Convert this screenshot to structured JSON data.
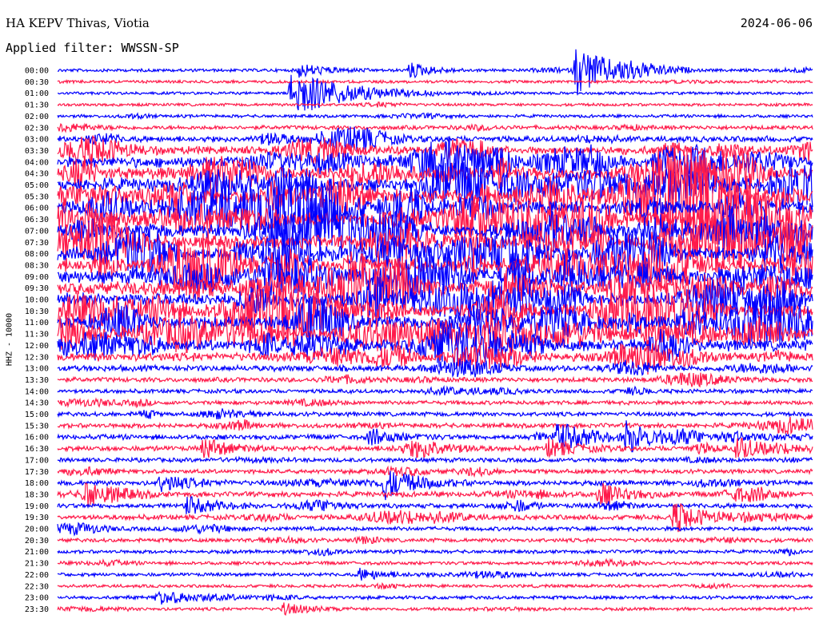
{
  "header": {
    "station": "HA KEPV Thivas, Viotia",
    "date": "2024-06-06",
    "filter": "Applied filter: WWSSN-SP",
    "channel": "HHZ - 10000"
  },
  "chart_data": {
    "type": "line",
    "title": "HA KEPV Thivas, Viotia",
    "subtitle": "Applied filter: WWSSN-SP",
    "ylabel": "HHZ - 10000",
    "date": "2024-06-06",
    "grid": false,
    "series_colors": [
      "#0000ff",
      "#ff1a4a"
    ],
    "trace_labels": [
      "00:00",
      "00:30",
      "01:00",
      "01:30",
      "02:00",
      "02:30",
      "03:00",
      "03:30",
      "04:00",
      "04:30",
      "05:00",
      "05:30",
      "06:00",
      "06:30",
      "07:00",
      "07:30",
      "08:00",
      "08:30",
      "09:00",
      "09:30",
      "10:00",
      "10:30",
      "11:00",
      "11:30",
      "12:00",
      "12:30",
      "13:00",
      "13:30",
      "14:00",
      "14:30",
      "15:00",
      "15:30",
      "16:00",
      "16:30",
      "17:00",
      "17:30",
      "18:00",
      "18:30",
      "19:00",
      "19:30",
      "20:00",
      "20:30",
      "21:00",
      "21:30",
      "22:00",
      "22:30",
      "23:00",
      "23:30"
    ],
    "trace_activity": [
      0.12,
      0.1,
      0.1,
      0.1,
      0.12,
      0.2,
      0.35,
      0.55,
      0.75,
      0.85,
      0.95,
      1.0,
      1.0,
      1.0,
      1.0,
      1.0,
      1.0,
      1.0,
      0.95,
      0.95,
      0.95,
      0.9,
      0.9,
      0.85,
      0.8,
      0.55,
      0.35,
      0.25,
      0.2,
      0.2,
      0.22,
      0.25,
      0.28,
      0.28,
      0.22,
      0.22,
      0.28,
      0.3,
      0.25,
      0.28,
      0.2,
      0.18,
      0.15,
      0.15,
      0.15,
      0.12,
      0.15,
      0.12
    ],
    "events": [
      {
        "trace": "00:00",
        "time_min": 20.6,
        "amp": 2.2,
        "dur_min": 1.5
      },
      {
        "trace": "00:00",
        "time_min": 9.6,
        "amp": 0.6,
        "dur_min": 1.0
      },
      {
        "trace": "00:00",
        "time_min": 14.0,
        "amp": 0.7,
        "dur_min": 0.8
      },
      {
        "trace": "00:00",
        "time_min": 22.5,
        "amp": 0.5,
        "dur_min": 1.0
      },
      {
        "trace": "01:00",
        "time_min": 9.3,
        "amp": 2.2,
        "dur_min": 2.0
      },
      {
        "trace": "16:00",
        "time_min": 19.8,
        "amp": 1.4,
        "dur_min": 1.2
      },
      {
        "trace": "16:00",
        "time_min": 22.6,
        "amp": 1.3,
        "dur_min": 1.0
      },
      {
        "trace": "16:00",
        "time_min": 12.4,
        "amp": 0.7,
        "dur_min": 1.0
      },
      {
        "trace": "16:30",
        "time_min": 5.8,
        "amp": 0.9,
        "dur_min": 1.0
      },
      {
        "trace": "16:30",
        "time_min": 19.5,
        "amp": 0.8,
        "dur_min": 1.0
      },
      {
        "trace": "16:30",
        "time_min": 27.0,
        "amp": 0.9,
        "dur_min": 1.0
      },
      {
        "trace": "18:00",
        "time_min": 4.1,
        "amp": 0.8,
        "dur_min": 1.0
      },
      {
        "trace": "18:00",
        "time_min": 13.0,
        "amp": 1.2,
        "dur_min": 1.2
      },
      {
        "trace": "18:30",
        "time_min": 1.1,
        "amp": 1.0,
        "dur_min": 1.0
      },
      {
        "trace": "18:30",
        "time_min": 21.5,
        "amp": 1.0,
        "dur_min": 1.0
      },
      {
        "trace": "19:00",
        "time_min": 5.1,
        "amp": 0.8,
        "dur_min": 1.0
      },
      {
        "trace": "19:30",
        "time_min": 24.5,
        "amp": 1.4,
        "dur_min": 1.0
      },
      {
        "trace": "22:00",
        "time_min": 12.0,
        "amp": 0.5,
        "dur_min": 1.0
      },
      {
        "trace": "23:00",
        "time_min": 4.0,
        "amp": 0.6,
        "dur_min": 1.0
      },
      {
        "trace": "23:30",
        "time_min": 9.0,
        "amp": 0.5,
        "dur_min": 1.0
      }
    ]
  }
}
